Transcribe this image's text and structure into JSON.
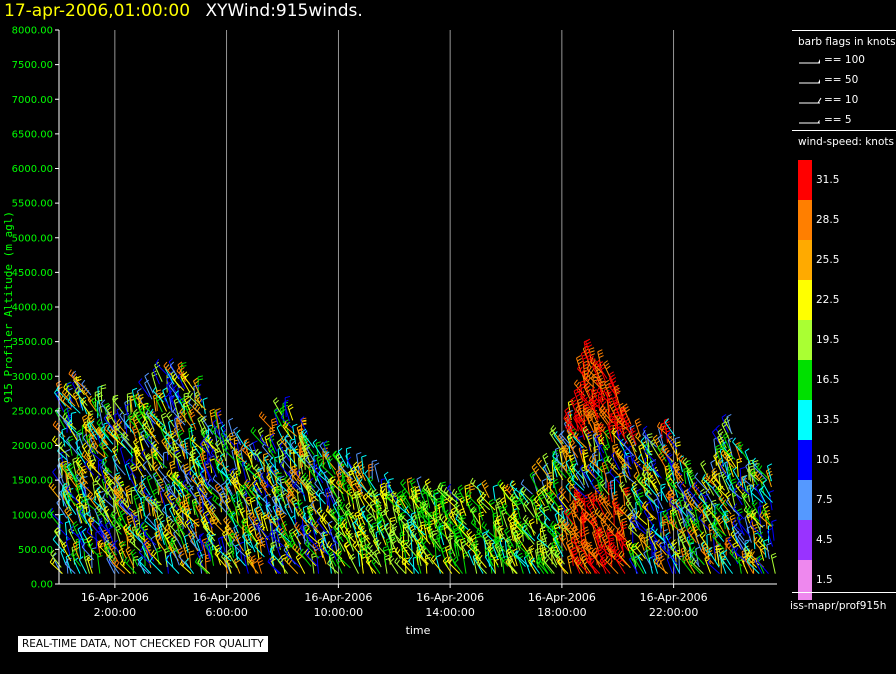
{
  "header": {
    "timestamp": "17-apr-2006,01:00:00",
    "product": "XYWind:915winds."
  },
  "legend": {
    "barb_title": "barb flags in knots",
    "barbs": [
      {
        "label": "== 100",
        "kind": "pennant"
      },
      {
        "label": "== 50",
        "kind": "pennant"
      },
      {
        "label": "== 10",
        "kind": "full"
      },
      {
        "label": "== 5",
        "kind": "half"
      }
    ],
    "speed_title": "wind-speed: knots",
    "colorbar": [
      {
        "label": "31.5",
        "color": "#ff0000"
      },
      {
        "label": "28.5",
        "color": "#ff7f00"
      },
      {
        "label": "25.5",
        "color": "#ffaa00"
      },
      {
        "label": "22.5",
        "color": "#ffff00"
      },
      {
        "label": "19.5",
        "color": "#aaff33"
      },
      {
        "label": "16.5",
        "color": "#00e000"
      },
      {
        "label": "13.5",
        "color": "#00ffff"
      },
      {
        "label": "10.5",
        "color": "#0000ff"
      },
      {
        "label": "7.5",
        "color": "#5599ff"
      },
      {
        "label": "4.5",
        "color": "#9933ff"
      },
      {
        "label": "1.5",
        "color": "#ee88ee"
      }
    ]
  },
  "footer": {
    "source_id": "iss-mapr/prof915h",
    "notice": "REAL-TIME DATA, NOT CHECKED FOR QUALITY"
  },
  "chart_data": {
    "type": "scatter",
    "title": "17-apr-2006,01:00:00 XYWind:915winds.",
    "xlabel": "time",
    "ylabel": "915 Profiler Altitude (m agl)",
    "xlim": [
      0.0,
      25.7
    ],
    "ylim": [
      0,
      8000
    ],
    "y_ticks": [
      "0.00",
      "500.00",
      "1000.00",
      "1500.00",
      "2000.00",
      "2500.00",
      "3000.00",
      "3500.00",
      "4000.00",
      "4500.00",
      "5000.00",
      "5500.00",
      "6000.00",
      "6500.00",
      "7000.00",
      "7500.00",
      "8000.00"
    ],
    "x_ticks": [
      {
        "date": "16-Apr-2006",
        "time": "2:00:00",
        "hour": 2
      },
      {
        "date": "16-Apr-2006",
        "time": "6:00:00",
        "hour": 6
      },
      {
        "date": "16-Apr-2006",
        "time": "10:00:00",
        "hour": 10
      },
      {
        "date": "16-Apr-2006",
        "time": "14:00:00",
        "hour": 14
      },
      {
        "date": "16-Apr-2006",
        "time": "18:00:00",
        "hour": 18
      },
      {
        "date": "16-Apr-2006",
        "time": "22:00:00",
        "hour": 22
      }
    ],
    "grid": "vertical lines at labeled times",
    "series": [
      {
        "name": "",
        "columns": [
          {
            "hour": 0.1,
            "top": 2700
          },
          {
            "hour": 1.0,
            "top": 2900
          },
          {
            "hour": 2.0,
            "top": 2400
          },
          {
            "hour": 3.0,
            "top": 2600
          },
          {
            "hour": 4.0,
            "top": 3100
          },
          {
            "hour": 5.0,
            "top": 2800
          },
          {
            "hour": 6.0,
            "top": 2300
          },
          {
            "hour": 7.0,
            "top": 1800
          },
          {
            "hour": 8.0,
            "top": 2500
          },
          {
            "hour": 9.0,
            "top": 2100
          },
          {
            "hour": 10.0,
            "top": 1800
          },
          {
            "hour": 11.0,
            "top": 1600
          },
          {
            "hour": 12.0,
            "top": 1300
          },
          {
            "hour": 13.0,
            "top": 1300
          },
          {
            "hour": 14.0,
            "top": 1200
          },
          {
            "hour": 15.0,
            "top": 1300
          },
          {
            "hour": 16.0,
            "top": 1300
          },
          {
            "hour": 17.0,
            "top": 1300
          },
          {
            "hour": 18.0,
            "top": 2000
          },
          {
            "hour": 19.0,
            "top": 3400
          },
          {
            "hour": 20.0,
            "top": 2800
          },
          {
            "hour": 21.0,
            "top": 2000
          },
          {
            "hour": 22.0,
            "top": 2200
          },
          {
            "hour": 23.0,
            "top": 1300
          },
          {
            "hour": 24.0,
            "top": 2300
          },
          {
            "hour": 25.0,
            "top": 1600
          }
        ]
      }
    ]
  }
}
